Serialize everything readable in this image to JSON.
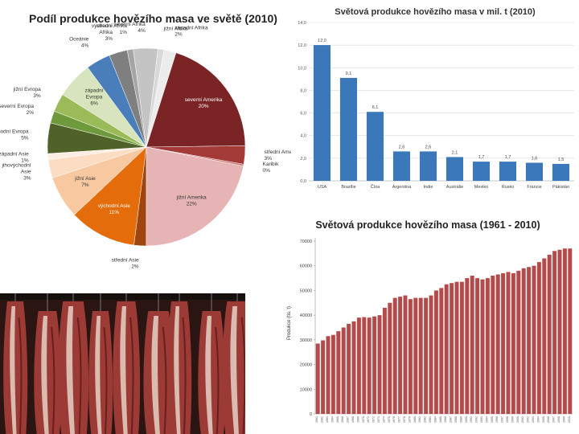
{
  "colors": {
    "blue_bar": "#3a78b9",
    "red_bar": "#b54a4a",
    "photo_bg": "#2a1512",
    "photo_meat": "#9c3a35",
    "photo_fat": "#e6d2c4"
  },
  "photo": {
    "icon": "hanging-beef-carcasses-photo"
  },
  "chart_data": [
    {
      "type": "pie",
      "title": "Podíl produkce hovězího masa ve světě (2010)",
      "slices": [
        {
          "label": "východní Afrika",
          "display_label": "východní\nAfrika",
          "display_value": "3%",
          "value": 3,
          "color": "#7f7f7f"
        },
        {
          "label": "střední Afrika",
          "display_label": "střední Afrika",
          "display_value": "1%",
          "value": 1,
          "color": "#a5a5a5"
        },
        {
          "label": "severní Afrika",
          "display_label": "severní Afrika",
          "display_value": "4%",
          "value": 4,
          "color": "#c4c4c4"
        },
        {
          "label": "jižní Afrika",
          "display_label": "jižní Afrika",
          "display_value": "",
          "value": 1,
          "color": "#d9d9d9"
        },
        {
          "label": "západní Afrika",
          "display_label": "západní Afrika",
          "display_value": "2%",
          "value": 2,
          "color": "#ececec"
        },
        {
          "label": "severní Amerika",
          "display_label": "severní Amerika",
          "display_value": "20%",
          "value": 20,
          "color": "#7a2426"
        },
        {
          "label": "střední Amerika",
          "display_label": "střední Amerika",
          "display_value": "3%",
          "value": 3,
          "color": "#a33a38"
        },
        {
          "label": "Karibik",
          "display_label": "Karibik",
          "display_value": "0%",
          "value": 0.3,
          "color": "#c87472"
        },
        {
          "label": "jižní Amerika",
          "display_label": "jižní Amerika",
          "display_value": "22%",
          "value": 22,
          "color": "#e6b4b5"
        },
        {
          "label": "střední Asie",
          "display_label": "střední Asie",
          "display_value": "2%",
          "value": 2,
          "color": "#9f4610"
        },
        {
          "label": "východní Asie",
          "display_label": "východní Asie",
          "display_value": "11%",
          "value": 11,
          "color": "#e46c0a"
        },
        {
          "label": "jižní Asie",
          "display_label": "jižní Asie",
          "display_value": "7%",
          "value": 7,
          "color": "#f8c9a0"
        },
        {
          "label": "jihovýchodní Asie",
          "display_label": "jihovýchodní\nAsie",
          "display_value": "3%",
          "value": 3,
          "color": "#fcdcc2"
        },
        {
          "label": "západní Asie",
          "display_label": "západní Asie",
          "display_value": "1%",
          "value": 1,
          "color": "#fdeee4"
        },
        {
          "label": "východní Evropa",
          "display_label": "východní Evropa",
          "display_value": "5%",
          "value": 5,
          "color": "#4f6228"
        },
        {
          "label": "severní Evropa",
          "display_label": "severní Evropa",
          "display_value": "2%",
          "value": 2,
          "color": "#6f9a3c"
        },
        {
          "label": "jižní Evropa",
          "display_label": "jižní Evropa",
          "display_value": "3%",
          "value": 3,
          "color": "#9bbb59"
        },
        {
          "label": "západní Evropa",
          "display_label": "západní\nEvropa",
          "display_value": "6%",
          "value": 6,
          "color": "#d7e4bd"
        },
        {
          "label": "Oceánie",
          "display_label": "Oceánie",
          "display_value": "4%",
          "value": 4,
          "color": "#4a7ebb"
        }
      ]
    },
    {
      "type": "bar",
      "title": "Světová produkce hovězího masa v mil. t (2010)",
      "categories": [
        "USA",
        "Brazílie",
        "Čína",
        "Argentina",
        "Indie",
        "Austrálie",
        "Mexiko",
        "Rusko",
        "Francie",
        "Pákistán"
      ],
      "values": [
        12.0,
        9.1,
        6.1,
        2.6,
        2.6,
        2.1,
        1.7,
        1.7,
        1.6,
        1.5
      ],
      "value_labels": [
        "12,0",
        "9,1",
        "6,1",
        "2,6",
        "2,6",
        "2,1",
        "1,7",
        "1,7",
        "1,6",
        "1,5"
      ],
      "ylim": [
        0,
        14
      ],
      "yticks": [
        "0,0",
        "2,0",
        "4,0",
        "6,0",
        "8,0",
        "10,0",
        "12,0",
        "14,0"
      ],
      "grid": true
    },
    {
      "type": "bar",
      "title": "Světová produkce hovězího masa (1961 - 2010)",
      "ylabel": "Produkce (tis. t)",
      "categories": [
        "1961",
        "1962",
        "1963",
        "1964",
        "1965",
        "1966",
        "1967",
        "1968",
        "1969",
        "1970",
        "1971",
        "1972",
        "1973",
        "1974",
        "1975",
        "1976",
        "1977",
        "1978",
        "1979",
        "1980",
        "1981",
        "1982",
        "1983",
        "1984",
        "1985",
        "1986",
        "1987",
        "1988",
        "1989",
        "1990",
        "1991",
        "1992",
        "1993",
        "1994",
        "1995",
        "1996",
        "1997",
        "1998",
        "1999",
        "2000",
        "2001",
        "2002",
        "2003",
        "2004",
        "2005",
        "2006",
        "2007",
        "2008",
        "2009",
        "2010"
      ],
      "values": [
        28500,
        29800,
        31500,
        32000,
        33500,
        35000,
        36500,
        37500,
        39000,
        39200,
        39000,
        39500,
        40000,
        43000,
        45000,
        47000,
        47500,
        48000,
        46500,
        47000,
        47000,
        47000,
        48000,
        50000,
        51000,
        52500,
        53000,
        53500,
        53500,
        55000,
        56000,
        55000,
        54500,
        55000,
        56000,
        56500,
        57000,
        57500,
        57000,
        58000,
        59000,
        59500,
        60000,
        61500,
        63000,
        64500,
        66000,
        66500,
        67000,
        67000
      ],
      "ylim": [
        0,
        70000
      ],
      "yticks": [
        "0",
        "10000",
        "20000",
        "30000",
        "40000",
        "50000",
        "60000",
        "70000"
      ],
      "grid": false
    }
  ]
}
